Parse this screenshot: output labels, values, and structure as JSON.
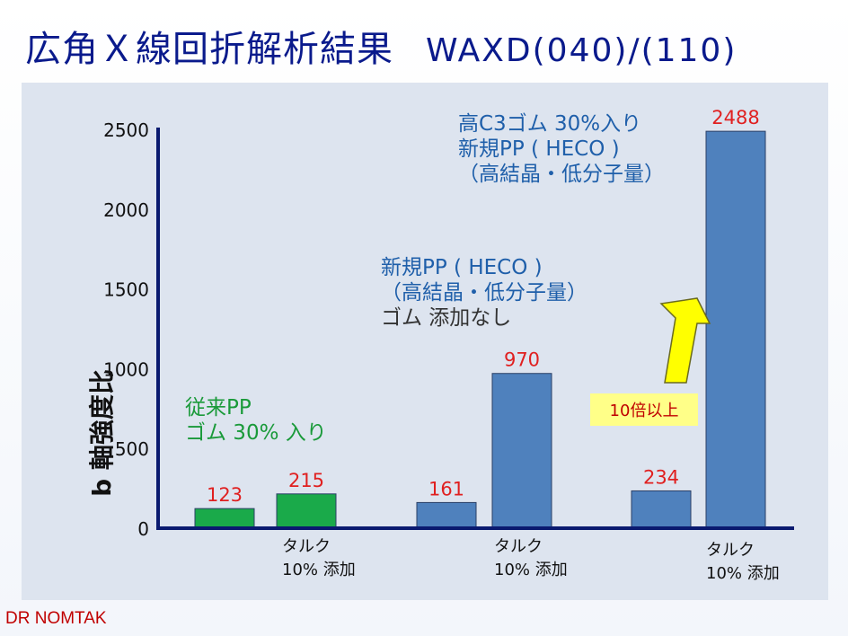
{
  "title": {
    "main": "広角Ｘ線回折解析結果",
    "sub": "WAXD(040)/(110)"
  },
  "chart_data": {
    "type": "bar",
    "ylabel": "b 軸強度比",
    "ylim": [
      0,
      2500
    ],
    "yticks": [
      "0",
      "500",
      "1000",
      "1500",
      "2000",
      "2500"
    ],
    "bars": [
      {
        "value": 123,
        "label": "123",
        "color": "#1aaa4a"
      },
      {
        "value": 215,
        "label": "215",
        "color": "#1aaa4a"
      },
      {
        "value": 161,
        "label": "161",
        "color": "#4f81bd"
      },
      {
        "value": 970,
        "label": "970",
        "color": "#4f81bd"
      },
      {
        "value": 234,
        "label": "234",
        "color": "#4f81bd"
      },
      {
        "value": 2488,
        "label": "2488",
        "color": "#4f81bd"
      }
    ],
    "value_label_color": "#e02020",
    "annotations": {
      "group1": [
        "従来PP",
        "ゴム 30% 入り"
      ],
      "group2": [
        "新規PP ( HECO )",
        "（高結晶・低分子量）",
        "ゴム 添加なし"
      ],
      "group3": [
        "高C3ゴム 30%入り",
        "新規PP ( HECO )",
        "（高結晶・低分子量）"
      ]
    },
    "talc_labels": [
      [
        "タルク",
        "10% 添加"
      ],
      [
        "タルク",
        "10% 添加"
      ],
      [
        "タルク",
        "10% 添加"
      ]
    ],
    "badge": "10倍以上",
    "arrow_color": "#ffff00"
  },
  "credit": "DR NOMTAK"
}
